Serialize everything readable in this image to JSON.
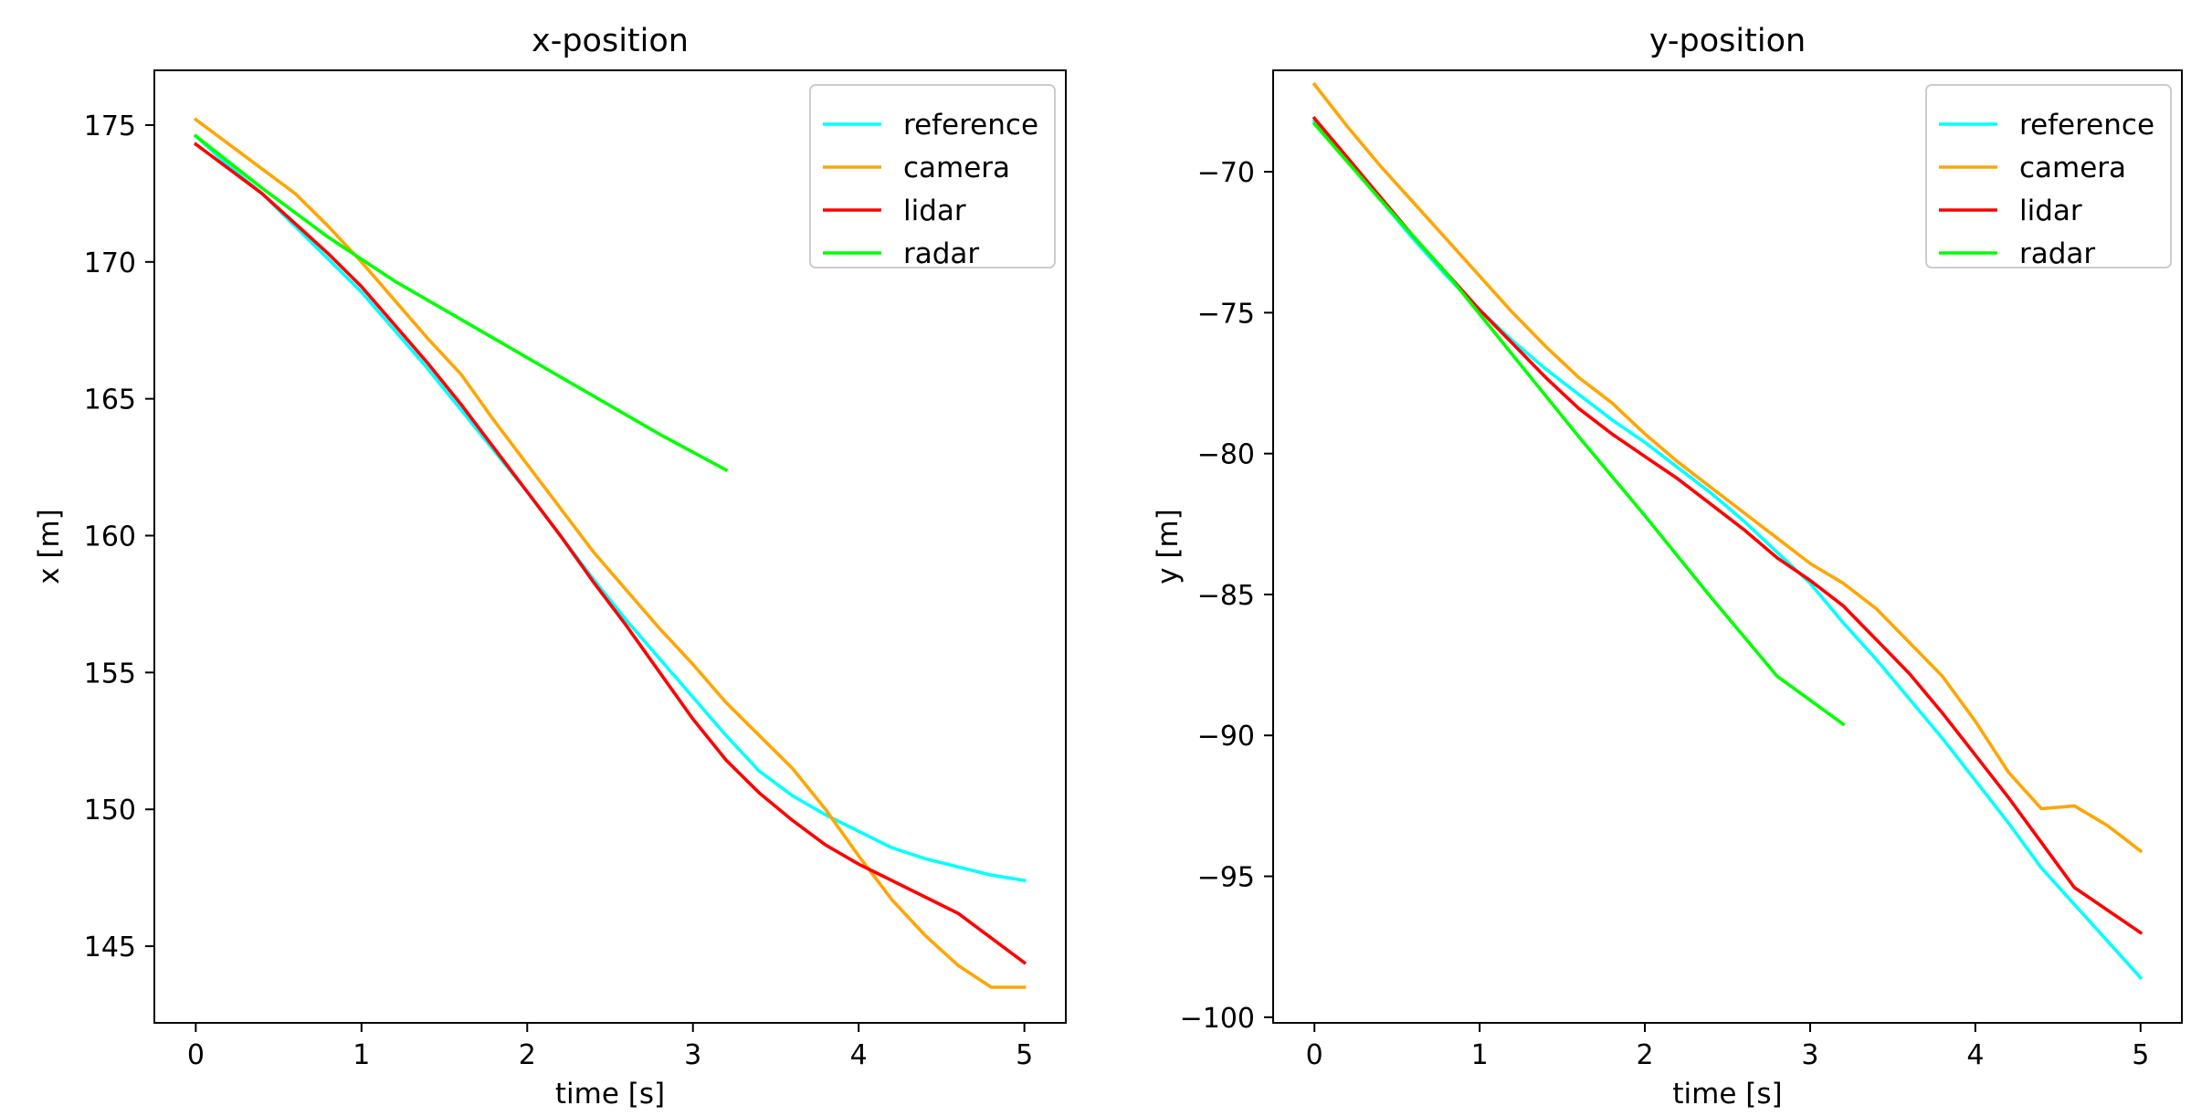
{
  "chart_data": [
    {
      "type": "line",
      "title": "x-position",
      "xlabel": "time [s]",
      "ylabel": "x [m]",
      "xlim": [
        -0.25,
        5.25
      ],
      "ylim": [
        142.2,
        177.0
      ],
      "xticks": [
        0,
        1,
        2,
        3,
        4,
        5
      ],
      "yticks": [
        145,
        150,
        155,
        160,
        165,
        170,
        175
      ],
      "grid": false,
      "legend_position": "top-right",
      "series": [
        {
          "name": "reference",
          "color": "#00ffff",
          "x": [
            0,
            0.2,
            0.4,
            0.6,
            0.8,
            1.0,
            1.2,
            1.4,
            1.6,
            1.8,
            2.0,
            2.2,
            2.4,
            2.6,
            2.8,
            3.0,
            3.2,
            3.4,
            3.6,
            3.8,
            4.0,
            4.2,
            4.4,
            4.6,
            4.8,
            5.0
          ],
          "y": [
            174.6,
            173.5,
            172.5,
            171.3,
            170.1,
            168.9,
            167.5,
            166.1,
            164.6,
            163.1,
            161.6,
            160.0,
            158.4,
            156.9,
            155.5,
            154.1,
            152.7,
            151.4,
            150.5,
            149.8,
            149.2,
            148.6,
            148.2,
            147.9,
            147.6,
            147.4
          ]
        },
        {
          "name": "camera",
          "color": "#ffa500",
          "x": [
            0,
            0.2,
            0.4,
            0.6,
            0.8,
            1.0,
            1.2,
            1.4,
            1.6,
            1.8,
            2.0,
            2.2,
            2.4,
            2.6,
            2.8,
            3.0,
            3.2,
            3.4,
            3.6,
            3.8,
            4.0,
            4.2,
            4.4,
            4.6,
            4.8,
            5.0
          ],
          "y": [
            175.2,
            174.3,
            173.4,
            172.5,
            171.3,
            170.0,
            168.6,
            167.2,
            165.9,
            164.2,
            162.6,
            161.0,
            159.4,
            158.0,
            156.6,
            155.3,
            153.9,
            152.7,
            151.5,
            150.0,
            148.3,
            146.7,
            145.4,
            144.3,
            143.5,
            143.5
          ]
        },
        {
          "name": "lidar",
          "color": "#ff0000",
          "x": [
            0,
            0.2,
            0.4,
            0.6,
            0.8,
            1.0,
            1.2,
            1.4,
            1.6,
            1.8,
            2.0,
            2.2,
            2.4,
            2.6,
            2.8,
            3.0,
            3.2,
            3.4,
            3.6,
            3.8,
            4.0,
            4.2,
            4.4,
            4.6,
            4.8,
            5.0
          ],
          "y": [
            174.3,
            173.4,
            172.5,
            171.4,
            170.3,
            169.1,
            167.7,
            166.3,
            164.8,
            163.2,
            161.6,
            160.0,
            158.3,
            156.7,
            155.0,
            153.3,
            151.8,
            150.6,
            149.6,
            148.7,
            148.0,
            147.4,
            146.8,
            146.2,
            145.3,
            144.4
          ]
        },
        {
          "name": "radar",
          "color": "#00ff00",
          "x": [
            0,
            0.4,
            0.8,
            1.2,
            1.6,
            2.0,
            2.4,
            2.8,
            3.2
          ],
          "y": [
            174.6,
            172.7,
            170.9,
            169.3,
            167.9,
            166.5,
            165.1,
            163.7,
            162.4
          ]
        }
      ]
    },
    {
      "type": "line",
      "title": "y-position",
      "xlabel": "time [s]",
      "ylabel": "y [m]",
      "xlim": [
        -0.25,
        5.25
      ],
      "ylim": [
        -100.2,
        -66.4
      ],
      "xticks": [
        0,
        1,
        2,
        3,
        4,
        5
      ],
      "yticks": [
        -70,
        -75,
        -80,
        -85,
        -90,
        -95,
        -100
      ],
      "grid": false,
      "legend_position": "top-right",
      "series": [
        {
          "name": "reference",
          "color": "#00ffff",
          "x": [
            0,
            0.2,
            0.4,
            0.6,
            0.8,
            1.0,
            1.2,
            1.4,
            1.6,
            1.8,
            2.0,
            2.2,
            2.4,
            2.6,
            2.8,
            3.0,
            3.2,
            3.4,
            3.6,
            3.8,
            4.0,
            4.2,
            4.4,
            4.6,
            4.8,
            5.0
          ],
          "y": [
            -68.2,
            -69.6,
            -71.0,
            -72.4,
            -73.7,
            -74.9,
            -76.0,
            -77.0,
            -77.9,
            -78.8,
            -79.6,
            -80.5,
            -81.4,
            -82.4,
            -83.5,
            -84.6,
            -86.0,
            -87.3,
            -88.7,
            -90.1,
            -91.6,
            -93.1,
            -94.7,
            -96.0,
            -97.3,
            -98.6
          ]
        },
        {
          "name": "camera",
          "color": "#ffa500",
          "x": [
            0,
            0.2,
            0.4,
            0.6,
            0.8,
            1.0,
            1.2,
            1.4,
            1.6,
            1.8,
            2.0,
            2.2,
            2.4,
            2.6,
            2.8,
            3.0,
            3.2,
            3.4,
            3.6,
            3.8,
            4.0,
            4.2,
            4.4,
            4.6,
            4.8,
            5.0
          ],
          "y": [
            -66.9,
            -68.4,
            -69.8,
            -71.1,
            -72.4,
            -73.7,
            -75.0,
            -76.2,
            -77.3,
            -78.2,
            -79.3,
            -80.3,
            -81.2,
            -82.1,
            -83.0,
            -83.9,
            -84.6,
            -85.5,
            -86.7,
            -87.9,
            -89.5,
            -91.3,
            -92.6,
            -92.5,
            -93.2,
            -94.1
          ]
        },
        {
          "name": "lidar",
          "color": "#ff0000",
          "x": [
            0,
            0.2,
            0.4,
            0.6,
            0.8,
            1.0,
            1.2,
            1.4,
            1.6,
            1.8,
            2.0,
            2.2,
            2.4,
            2.6,
            2.8,
            3.0,
            3.2,
            3.4,
            3.6,
            3.8,
            4.0,
            4.2,
            4.4,
            4.6,
            4.8,
            5.0
          ],
          "y": [
            -68.1,
            -69.5,
            -70.9,
            -72.3,
            -73.6,
            -74.9,
            -76.1,
            -77.3,
            -78.4,
            -79.3,
            -80.1,
            -80.9,
            -81.8,
            -82.7,
            -83.7,
            -84.5,
            -85.4,
            -86.6,
            -87.8,
            -89.2,
            -90.7,
            -92.2,
            -93.8,
            -95.4,
            -96.2,
            -97.0
          ]
        },
        {
          "name": "radar",
          "color": "#00ff00",
          "x": [
            0,
            0.4,
            0.8,
            1.2,
            1.6,
            2.0,
            2.4,
            2.8,
            3.2
          ],
          "y": [
            -68.3,
            -71.0,
            -73.6,
            -76.5,
            -79.4,
            -82.2,
            -85.1,
            -87.9,
            -89.6
          ]
        }
      ]
    }
  ]
}
